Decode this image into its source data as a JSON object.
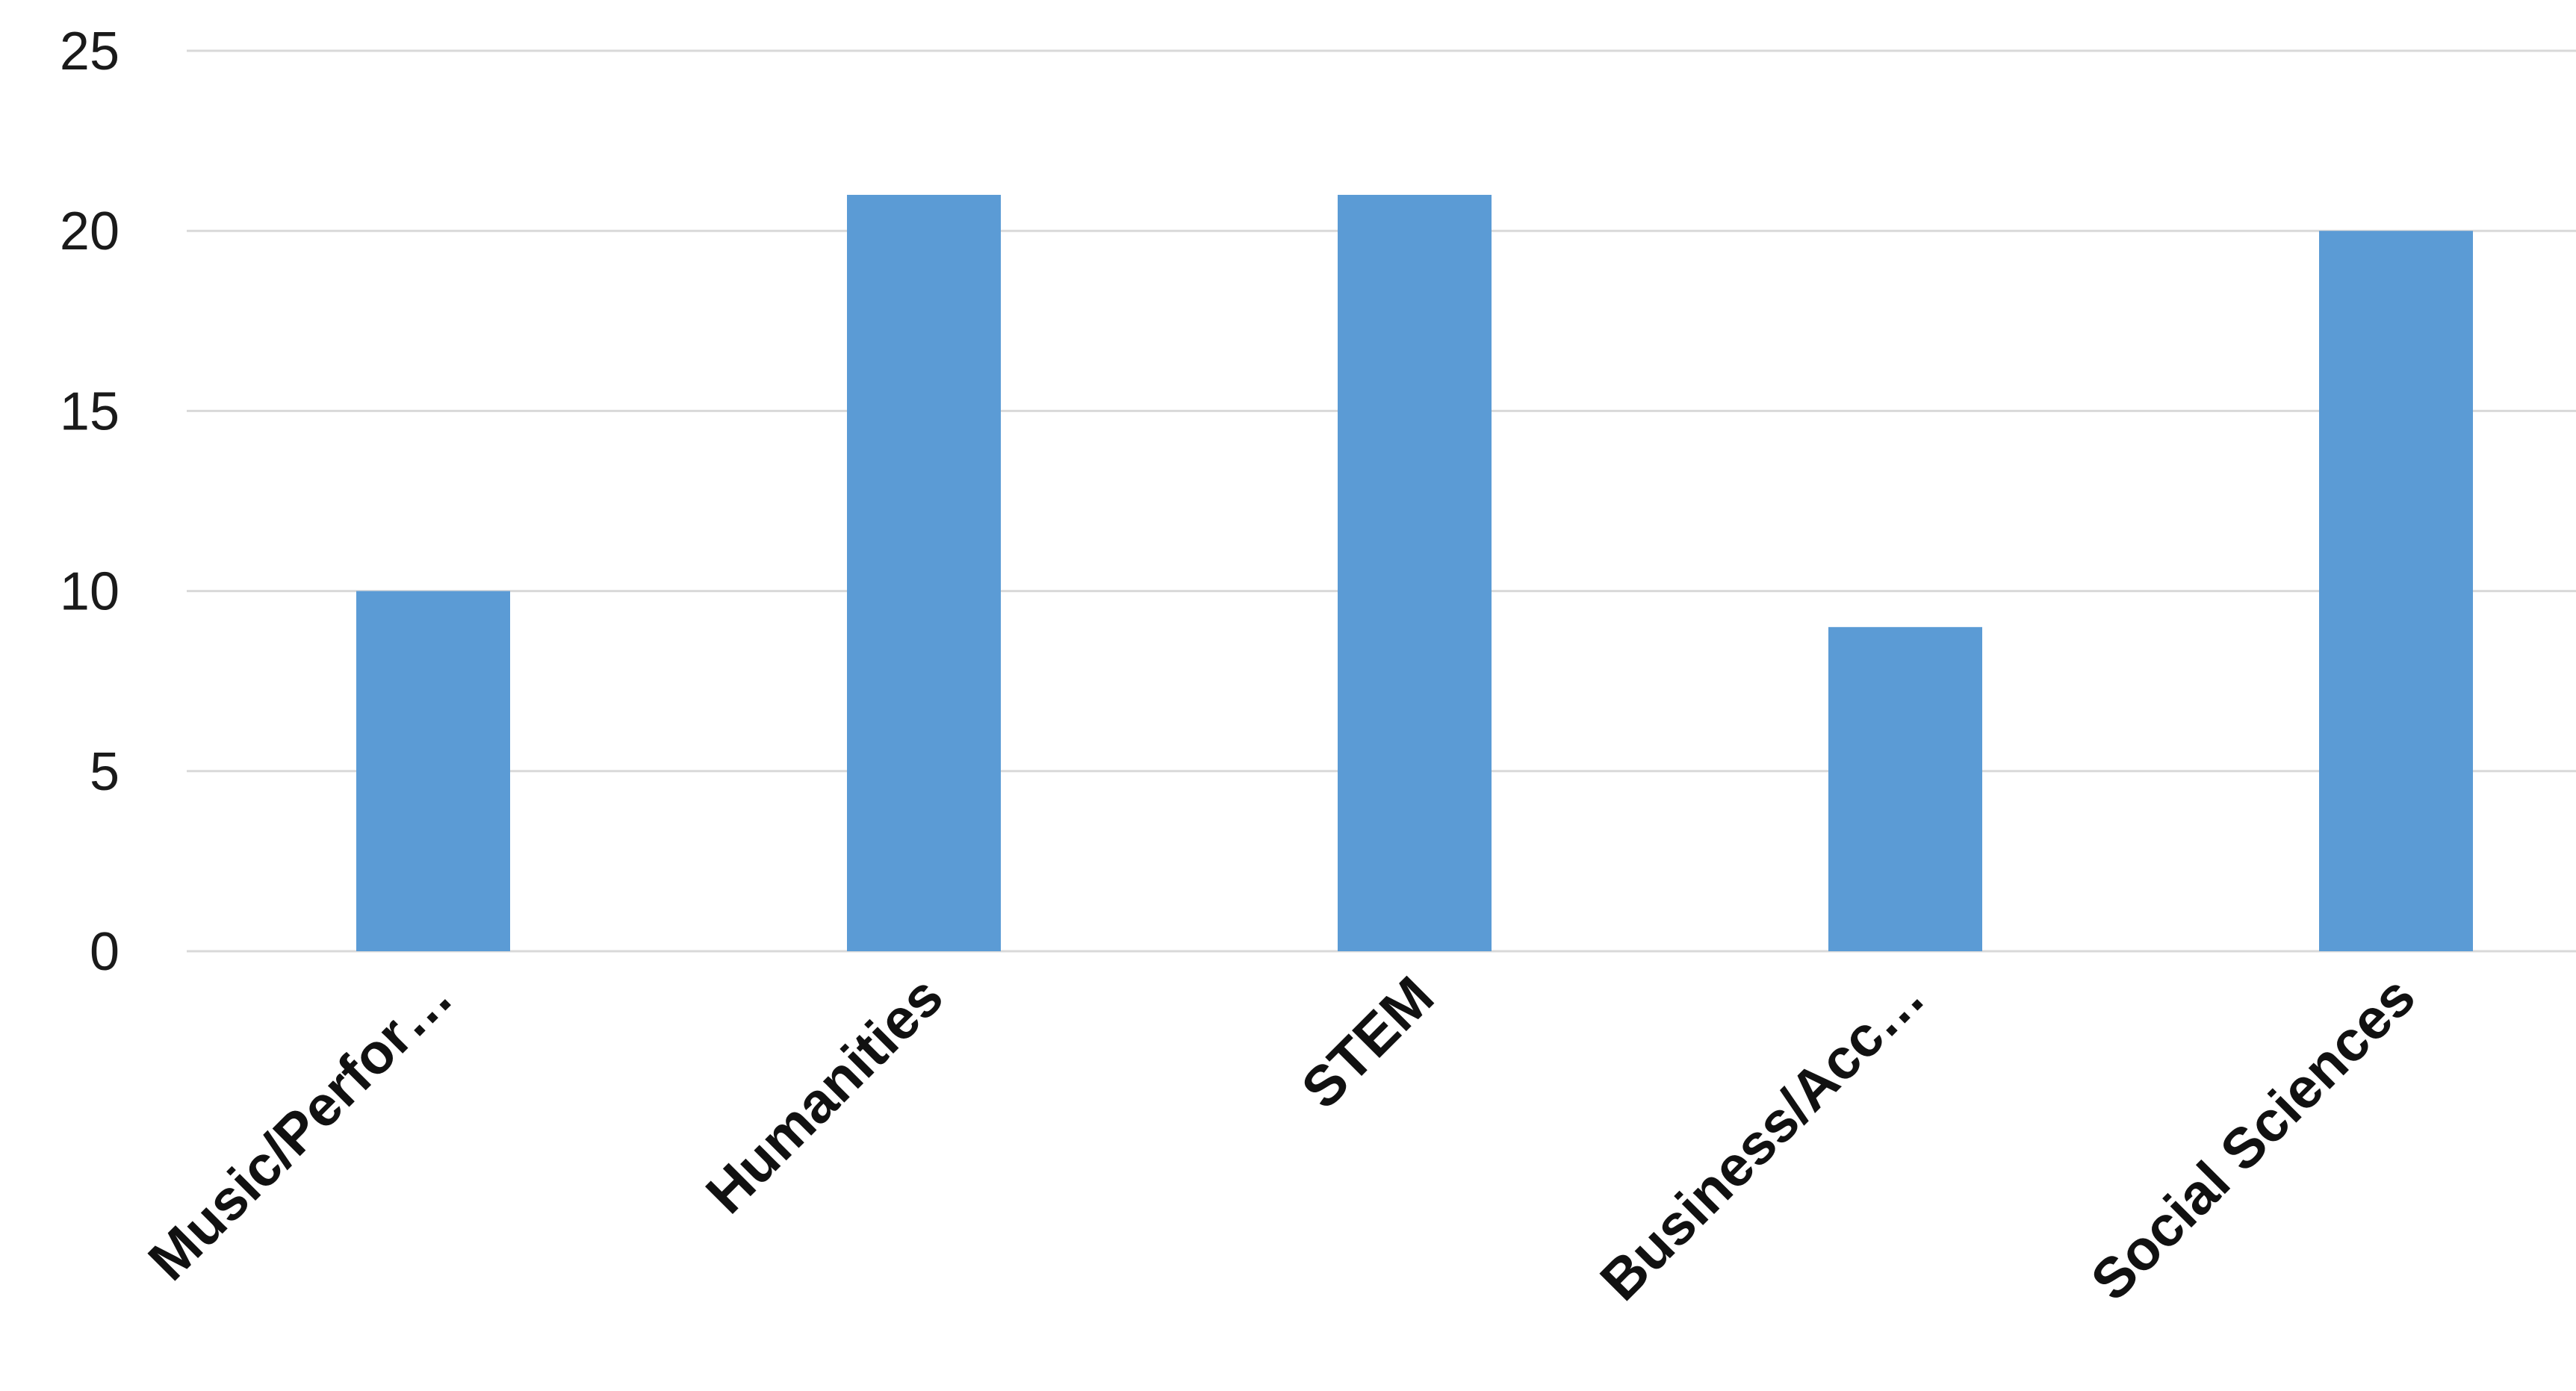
{
  "chart_data": {
    "type": "bar",
    "title": "",
    "xlabel": "",
    "ylabel": "",
    "categories": [
      "Music/Perfor…",
      "Humanities",
      "STEM",
      "Business/Acc…",
      "Social Sciences"
    ],
    "values": [
      10,
      21,
      21,
      9,
      20
    ],
    "ylim": [
      0,
      25
    ],
    "yticks": [
      0,
      5,
      10,
      15,
      20,
      25
    ],
    "grid": true,
    "legend": "none",
    "bar_color": "#5b9bd5",
    "grid_color": "#d9d9d9"
  }
}
